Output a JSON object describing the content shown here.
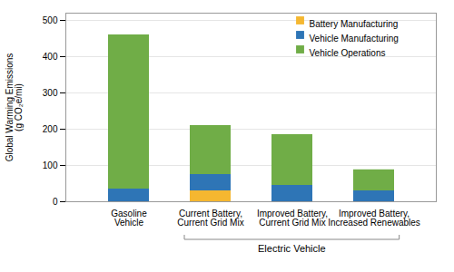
{
  "chart_data": {
    "type": "bar",
    "stacked": true,
    "categories": [
      "Gasoline\nVehicle",
      "Current Battery,\nCurrent Grid Mix",
      "Improved Battery,\nCurrent Grid Mix",
      "Improved Battery,\nIncreased Renewables"
    ],
    "series": [
      {
        "name": "Battery Manufacturing",
        "color": "#F5B730",
        "values": [
          0,
          30,
          0,
          0
        ]
      },
      {
        "name": "Vehicle Manufacturing",
        "color": "#2E75B6",
        "values": [
          35,
          45,
          45,
          30
        ]
      },
      {
        "name": "Vehicle Operations",
        "color": "#70AD47",
        "values": [
          425,
          135,
          140,
          58
        ]
      }
    ],
    "ylabel": "Global Warming Emissions\n(g CO₂e/mi)",
    "ylim": [
      0,
      520
    ],
    "yticks": [
      0,
      100,
      200,
      300,
      400,
      500
    ],
    "grid": true,
    "legend": "upper right",
    "annotation": "Electric Vehicle"
  }
}
